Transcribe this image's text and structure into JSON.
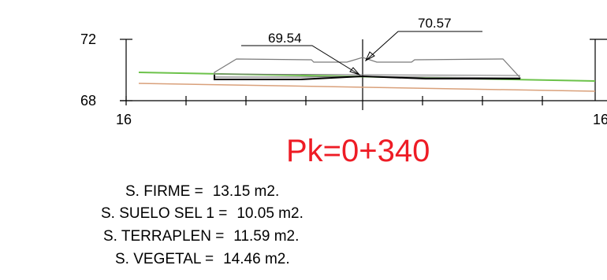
{
  "section": {
    "y_axis_labels": [
      "72",
      "68"
    ],
    "x_axis_labels": [
      "16",
      "16"
    ],
    "dimension_left": "69.54",
    "dimension_right": "70.57",
    "colors": {
      "terrain_green": "#6cc24a",
      "subgrade_orange": "#d9a07a",
      "axes": "#000000"
    }
  },
  "pk": {
    "label": "Pk=0+340",
    "color": "#ee1c25"
  },
  "areas": [
    {
      "label": "S. FIRME =",
      "value": "13.15 m2."
    },
    {
      "label": "S. SUELO SEL 1 =",
      "value": "10.05 m2."
    },
    {
      "label": "S. TERRAPLEN =",
      "value": "11.59 m2."
    },
    {
      "label": "S. VEGETAL =",
      "value": "14.46 m2."
    }
  ]
}
